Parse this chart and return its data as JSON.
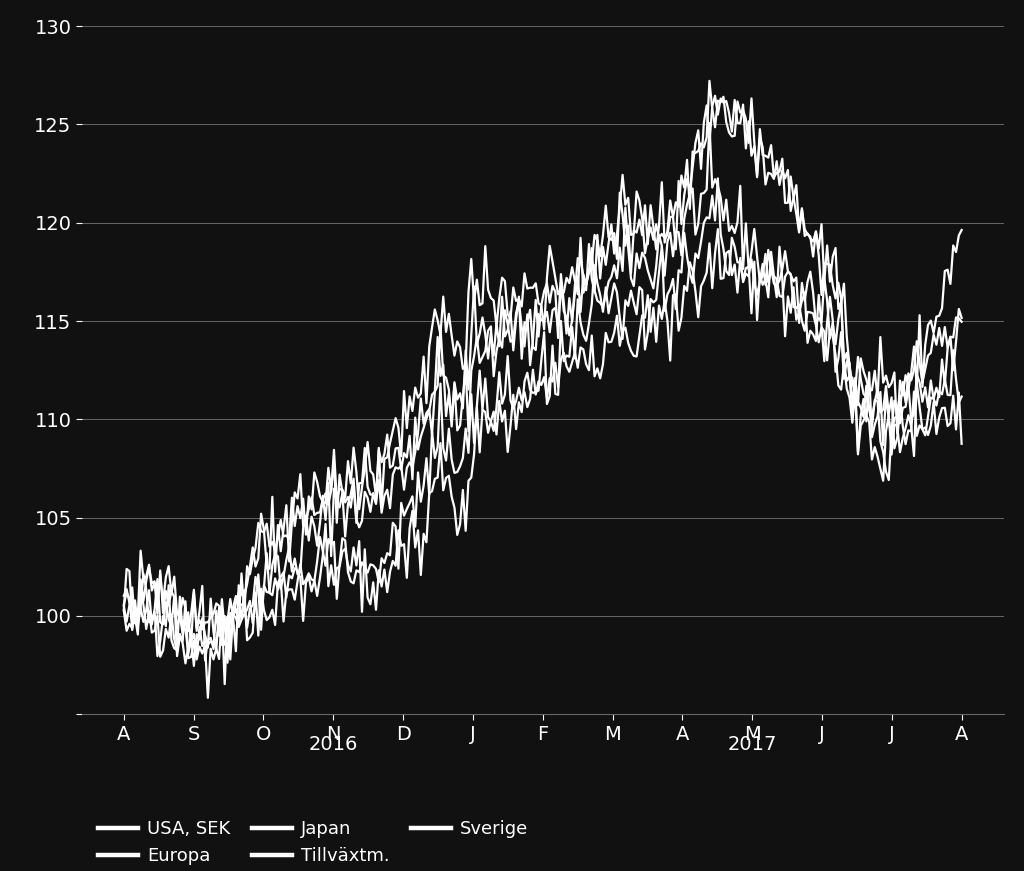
{
  "background_color": "#111111",
  "axes_bg_color": "#111111",
  "line_color": "#ffffff",
  "grid_color": "#666666",
  "text_color": "#ffffff",
  "ylim": [
    95,
    130
  ],
  "yticks": [
    95,
    100,
    105,
    110,
    115,
    120,
    125,
    130
  ],
  "xlabel_months": [
    "A",
    "S",
    "O",
    "N",
    "D",
    "J",
    "F",
    "M",
    "A",
    "M",
    "J",
    "J",
    "A"
  ],
  "legend_entries_row1": [
    "USA, SEK",
    "Europa",
    "Japan"
  ],
  "legend_entries_row2": [
    "Tillväxtm.",
    "Sverige"
  ],
  "tick_fontsize": 14,
  "legend_fontsize": 13,
  "n_points": 300,
  "line_width": 1.6,
  "seed": 42
}
